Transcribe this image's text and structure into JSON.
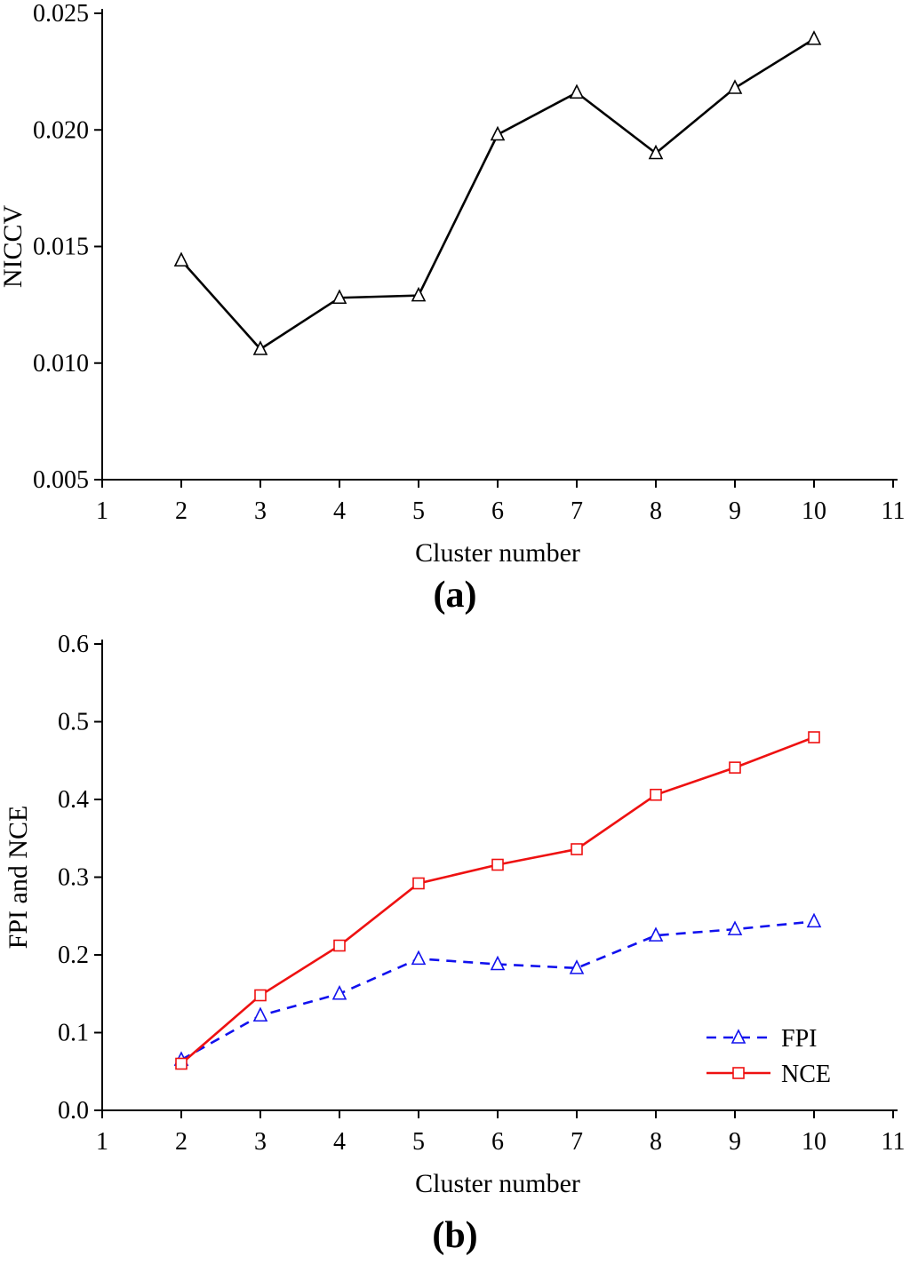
{
  "figure": {
    "panel_a_label": "(a)",
    "panel_b_label": "(b)"
  },
  "chart_data": [
    {
      "type": "line",
      "title": "",
      "xlabel": "Cluster number",
      "ylabel": "NICCV",
      "xlim": [
        1,
        11
      ],
      "ylim": [
        0.005,
        0.025
      ],
      "xticks": [
        1,
        2,
        3,
        4,
        5,
        6,
        7,
        8,
        9,
        10,
        11
      ],
      "yticks": [
        0.005,
        0.01,
        0.015,
        0.02,
        0.025
      ],
      "ytick_labels": [
        "0.005",
        "0.010",
        "0.015",
        "0.020",
        "0.025"
      ],
      "grid": false,
      "x": [
        2,
        3,
        4,
        5,
        6,
        7,
        8,
        9,
        10
      ],
      "series": [
        {
          "name": "NICCV",
          "values": [
            0.0144,
            0.0106,
            0.0128,
            0.0129,
            0.0198,
            0.0216,
            0.019,
            0.0218,
            0.0239
          ],
          "color": "#000000",
          "marker": "triangle",
          "dash": "solid"
        }
      ],
      "legend": null
    },
    {
      "type": "line",
      "title": "",
      "xlabel": "Cluster number",
      "ylabel": "FPI and NCE",
      "xlim": [
        1,
        11
      ],
      "ylim": [
        0.0,
        0.6
      ],
      "xticks": [
        1,
        2,
        3,
        4,
        5,
        6,
        7,
        8,
        9,
        10,
        11
      ],
      "yticks": [
        0.0,
        0.1,
        0.2,
        0.3,
        0.4,
        0.5,
        0.6
      ],
      "ytick_labels": [
        "0.0",
        "0.1",
        "0.2",
        "0.3",
        "0.4",
        "0.5",
        "0.6"
      ],
      "grid": false,
      "x": [
        2,
        3,
        4,
        5,
        6,
        7,
        8,
        9,
        10
      ],
      "series": [
        {
          "name": "FPI",
          "values": [
            0.065,
            0.122,
            0.15,
            0.195,
            0.188,
            0.183,
            0.225,
            0.233,
            0.243
          ],
          "color": "#1111ee",
          "marker": "triangle",
          "dash": "dashed"
        },
        {
          "name": "NCE",
          "values": [
            0.06,
            0.148,
            0.212,
            0.292,
            0.316,
            0.336,
            0.406,
            0.441,
            0.48
          ],
          "color": "#ee1111",
          "marker": "square",
          "dash": "solid"
        }
      ],
      "legend": {
        "position": "bottom-right",
        "entries": [
          "FPI",
          "NCE"
        ]
      }
    }
  ]
}
